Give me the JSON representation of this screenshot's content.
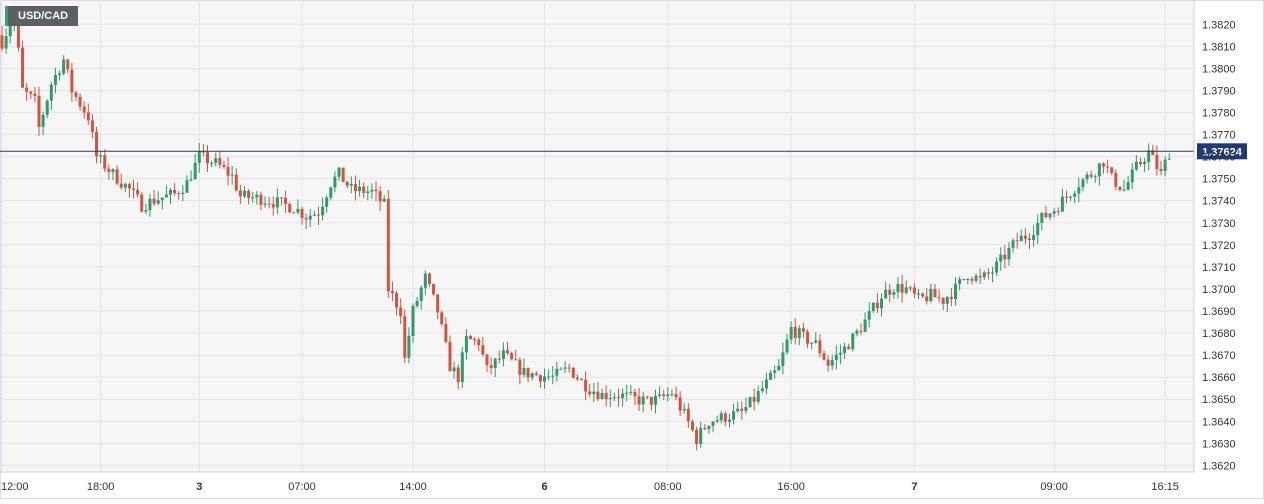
{
  "symbol": "USD/CAD",
  "colors": {
    "up": "#2f9a6a",
    "down": "#d0553f",
    "grid": "#e4e4ea",
    "background": "#f6f6f6",
    "current_line": "#1f3a78",
    "current_label_bg": "#1f3a78",
    "axis_text": "#333333"
  },
  "chart_data": {
    "type": "candlestick",
    "title": "USD/CAD",
    "ylim": [
      1.3617,
      1.3831
    ],
    "y_ticks": [
      "1.3820",
      "1.3810",
      "1.3800",
      "1.3790",
      "1.3780",
      "1.3770",
      "1.3760",
      "1.3750",
      "1.3740",
      "1.3730",
      "1.3720",
      "1.3710",
      "1.3700",
      "1.3690",
      "1.3680",
      "1.3670",
      "1.3660",
      "1.3650",
      "1.3640",
      "1.3630",
      "1.3620"
    ],
    "x_ticks": [
      {
        "label": "12:00",
        "index": 0,
        "bold": false
      },
      {
        "label": "18:00",
        "index": 24,
        "bold": false
      },
      {
        "label": "3",
        "index": 48,
        "bold": true
      },
      {
        "label": "07:00",
        "index": 73,
        "bold": false
      },
      {
        "label": "14:00",
        "index": 100,
        "bold": false
      },
      {
        "label": "6",
        "index": 132,
        "bold": true
      },
      {
        "label": "08:00",
        "index": 162,
        "bold": false
      },
      {
        "label": "16:00",
        "index": 192,
        "bold": false
      },
      {
        "label": "7",
        "index": 222,
        "bold": true
      },
      {
        "label": "09:00",
        "index": 256,
        "bold": false
      },
      {
        "label": "16:15",
        "index": 283,
        "bold": false
      }
    ],
    "current_price": 1.37624,
    "current_label": "1.37624",
    "grid": true,
    "anchors": [
      [
        0,
        1.3812
      ],
      [
        3,
        1.3825
      ],
      [
        5,
        1.379
      ],
      [
        8,
        1.3785
      ],
      [
        9,
        1.3773
      ],
      [
        12,
        1.3793
      ],
      [
        15,
        1.3804
      ],
      [
        17,
        1.379
      ],
      [
        21,
        1.3778
      ],
      [
        23,
        1.376
      ],
      [
        27,
        1.3752
      ],
      [
        31,
        1.3745
      ],
      [
        34,
        1.3738
      ],
      [
        38,
        1.3741
      ],
      [
        42,
        1.3743
      ],
      [
        45,
        1.3748
      ],
      [
        48,
        1.376
      ],
      [
        52,
        1.3757
      ],
      [
        56,
        1.3751
      ],
      [
        58,
        1.3742
      ],
      [
        63,
        1.3741
      ],
      [
        67,
        1.3739
      ],
      [
        71,
        1.3737
      ],
      [
        74,
        1.3733
      ],
      [
        77,
        1.3735
      ],
      [
        80,
        1.3748
      ],
      [
        82,
        1.3752
      ],
      [
        85,
        1.3745
      ],
      [
        90,
        1.3744
      ],
      [
        93,
        1.3738
      ],
      [
        94,
        1.37
      ],
      [
        97,
        1.369
      ],
      [
        98,
        1.3668
      ],
      [
        100,
        1.369
      ],
      [
        103,
        1.3705
      ],
      [
        106,
        1.369
      ],
      [
        109,
        1.3665
      ],
      [
        111,
        1.366
      ],
      [
        113,
        1.3677
      ],
      [
        116,
        1.3676
      ],
      [
        118,
        1.3663
      ],
      [
        122,
        1.367
      ],
      [
        127,
        1.3662
      ],
      [
        130,
        1.3661
      ],
      [
        134,
        1.366
      ],
      [
        138,
        1.3664
      ],
      [
        141,
        1.3658
      ],
      [
        143,
        1.3655
      ],
      [
        146,
        1.3652
      ],
      [
        150,
        1.3652
      ],
      [
        154,
        1.365
      ],
      [
        157,
        1.3649
      ],
      [
        160,
        1.365
      ],
      [
        163,
        1.3653
      ],
      [
        166,
        1.3643
      ],
      [
        169,
        1.3632
      ],
      [
        172,
        1.364
      ],
      [
        176,
        1.3642
      ],
      [
        180,
        1.3644
      ],
      [
        183,
        1.365
      ],
      [
        186,
        1.3657
      ],
      [
        189,
        1.3664
      ],
      [
        192,
        1.3682
      ],
      [
        195,
        1.3678
      ],
      [
        198,
        1.3675
      ],
      [
        201,
        1.3666
      ],
      [
        205,
        1.3673
      ],
      [
        208,
        1.368
      ],
      [
        211,
        1.3688
      ],
      [
        214,
        1.3697
      ],
      [
        217,
        1.3701
      ],
      [
        220,
        1.37
      ],
      [
        223,
        1.3695
      ],
      [
        226,
        1.3697
      ],
      [
        229,
        1.3695
      ],
      [
        232,
        1.37
      ],
      [
        235,
        1.3707
      ],
      [
        238,
        1.3704
      ],
      [
        241,
        1.3708
      ],
      [
        244,
        1.3715
      ],
      [
        247,
        1.3722
      ],
      [
        250,
        1.3725
      ],
      [
        253,
        1.3732
      ],
      [
        256,
        1.3736
      ],
      [
        259,
        1.3742
      ],
      [
        262,
        1.3748
      ],
      [
        265,
        1.3752
      ],
      [
        268,
        1.3758
      ],
      [
        270,
        1.375
      ],
      [
        273,
        1.3745
      ],
      [
        276,
        1.3755
      ],
      [
        279,
        1.3762
      ],
      [
        282,
        1.3752
      ],
      [
        284,
        1.3762
      ]
    ]
  }
}
